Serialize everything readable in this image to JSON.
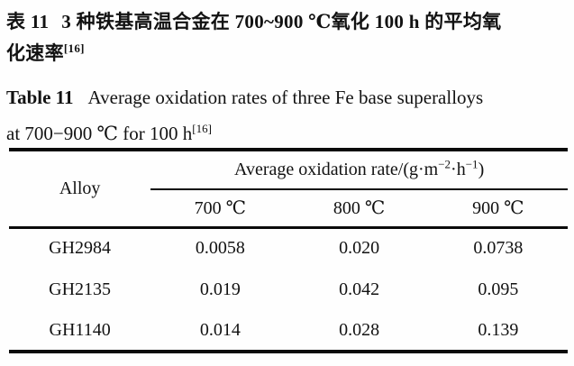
{
  "caption_cn": {
    "label": "表 11",
    "line1_rest": "3 种铁基高温合金在 700~900 ℃氧化 100 h 的平均氧",
    "line2": "化速率",
    "ref_sup": "[16]"
  },
  "caption_en": {
    "label": "Table 11",
    "line1_rest": "Average oxidation rates of three Fe base superalloys",
    "line2": "at 700−900 ℃ for 100 h",
    "ref_sup": "[16]"
  },
  "table": {
    "alloy_header": "Alloy",
    "unit_header": {
      "prefix": "Average oxidation rate/(g·m",
      "sup1": "−2",
      "mid": "·h",
      "sup2": "−1",
      "close": ")"
    },
    "temp_columns": [
      "700 ℃",
      "800 ℃",
      "900 ℃"
    ],
    "rows": [
      {
        "alloy": "GH2984",
        "values": [
          "0.0058",
          "0.020",
          "0.0738"
        ]
      },
      {
        "alloy": "GH2135",
        "values": [
          "0.019",
          "0.042",
          "0.095"
        ]
      },
      {
        "alloy": "GH1140",
        "values": [
          "0.014",
          "0.028",
          "0.139"
        ]
      }
    ]
  },
  "colors": {
    "ink": "#0a0a0a",
    "background": "#fefefe"
  }
}
